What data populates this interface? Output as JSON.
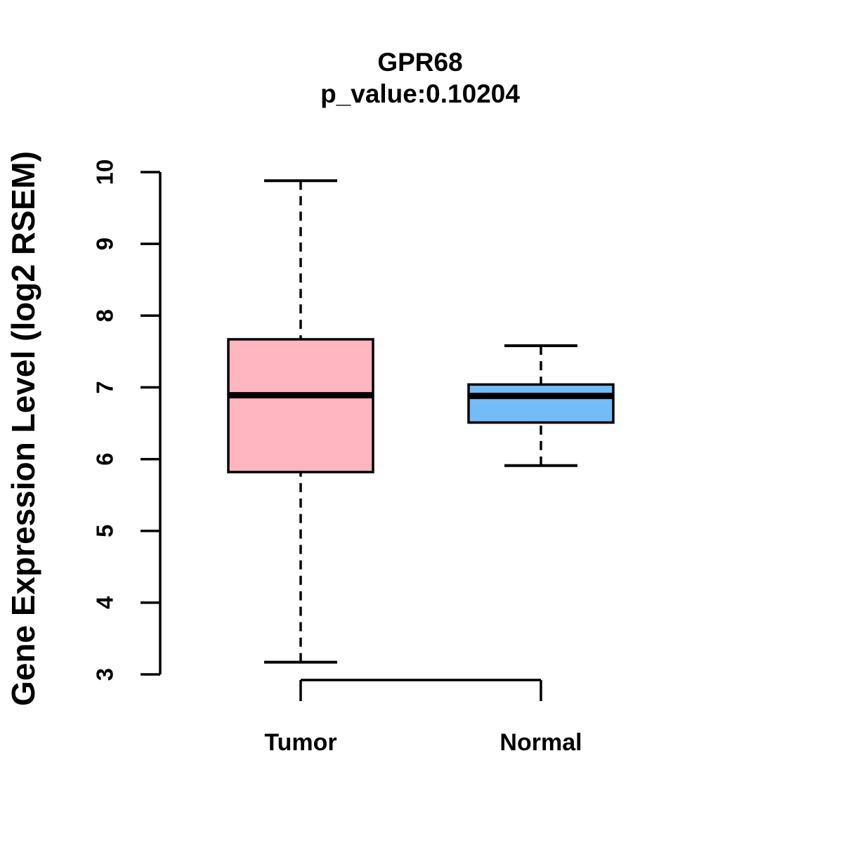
{
  "chart_data": {
    "type": "boxplot",
    "title": "GPR68",
    "subtitle": "p_value:0.10204",
    "ylabel": "Gene Expression Level (log2 RSEM)",
    "xlabel": "",
    "categories": [
      "Tumor",
      "Normal"
    ],
    "series": [
      {
        "name": "Tumor",
        "color": "#FFB6C1",
        "whisker_low": 3.17,
        "q1": 5.82,
        "median": 6.89,
        "q3": 7.67,
        "whisker_high": 9.88
      },
      {
        "name": "Normal",
        "color": "#74BCF8",
        "whisker_low": 5.91,
        "q1": 6.51,
        "median": 6.88,
        "q3": 7.04,
        "whisker_high": 7.58
      }
    ],
    "ylim": [
      3,
      10
    ],
    "yticks": [
      3,
      4,
      5,
      6,
      7,
      8,
      9,
      10
    ],
    "grid": false,
    "legend": null,
    "stroke_color": "#000000",
    "background_color": "#FFFFFF"
  }
}
